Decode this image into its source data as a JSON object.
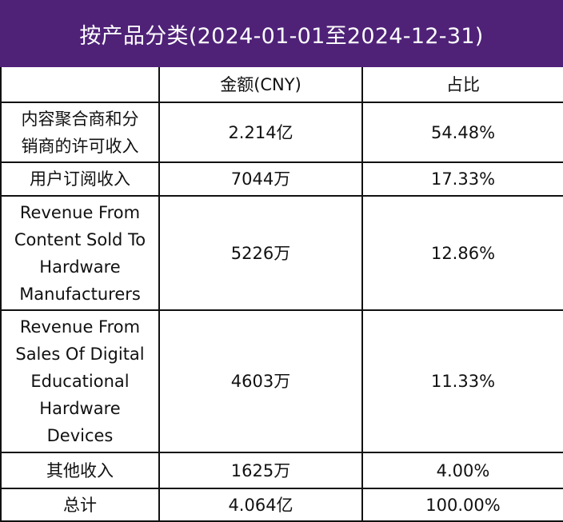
{
  "title": "按产品分类(2024-01-01至2024-12-31)",
  "colors": {
    "header_bg": "#4f2278",
    "header_text": "#ffffff",
    "border": "#111111"
  },
  "table": {
    "headers": [
      "",
      "金额(CNY)",
      "占比"
    ],
    "rows": [
      {
        "category": "内容聚合商和分\n销商的许可收入",
        "amount": "2.214亿",
        "share": "54.48%"
      },
      {
        "category": "用户订阅收入",
        "amount": "7044万",
        "share": "17.33%"
      },
      {
        "category": "Revenue From\nContent Sold To\nHardware\nManufacturers",
        "amount": "5226万",
        "share": "12.86%"
      },
      {
        "category": "Revenue From\nSales Of Digital\nEducational\nHardware\nDevices",
        "amount": "4603万",
        "share": "11.33%"
      },
      {
        "category": "其他收入",
        "amount": "1625万",
        "share": "4.00%"
      },
      {
        "category": "总计",
        "amount": "4.064亿",
        "share": "100.00%"
      }
    ]
  }
}
